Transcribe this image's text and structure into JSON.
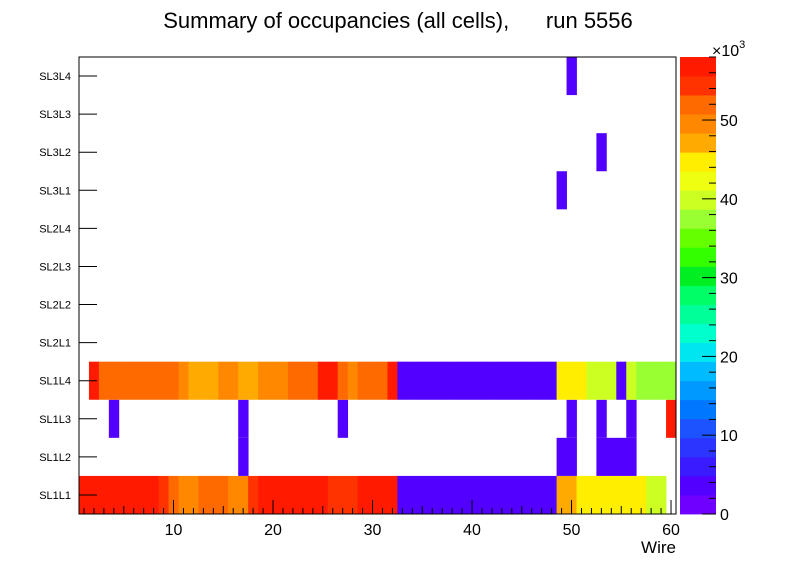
{
  "chart_data": {
    "type": "heatmap",
    "title": "Summary of occupancies (all cells),      run 5556",
    "xlabel": "Wire",
    "ylabel": "",
    "xlim": [
      0.5,
      60.5
    ],
    "x_ticks": [
      10,
      20,
      30,
      40,
      50,
      60
    ],
    "y_categories": [
      "SL1L1",
      "SL1L2",
      "SL1L3",
      "SL1L4",
      "SL2L1",
      "SL2L2",
      "SL2L3",
      "SL2L4",
      "SL3L1",
      "SL3L2",
      "SL3L3",
      "SL3L4"
    ],
    "colorbar": {
      "range": [
        0,
        58000
      ],
      "ticks": [
        0,
        10,
        20,
        30,
        40,
        50
      ],
      "exponent_label": "×10",
      "exponent_power": "3"
    },
    "rows": {
      "SL1L1": {
        "start_wire": 1,
        "values": [
          56000,
          56000,
          56000,
          56000,
          56000,
          56000,
          56000,
          56000,
          54000,
          52000,
          50000,
          50000,
          52000,
          52000,
          52000,
          50000,
          50000,
          54000,
          56000,
          56000,
          56000,
          56000,
          56000,
          56000,
          56000,
          54000,
          54000,
          54000,
          56000,
          56000,
          56000,
          56000,
          3000,
          3000,
          3000,
          3000,
          3000,
          3000,
          3000,
          3000,
          3000,
          3000,
          3000,
          3000,
          3000,
          3000,
          3000,
          3000,
          46000,
          46000,
          44000,
          44000,
          44000,
          44000,
          44000,
          44000,
          44000,
          40000,
          40000
        ]
      },
      "SL1L2": {
        "start_wire": 1,
        "values": [
          null,
          null,
          null,
          null,
          null,
          null,
          null,
          null,
          null,
          null,
          null,
          null,
          null,
          null,
          null,
          null,
          3000,
          null,
          null,
          null,
          null,
          null,
          null,
          null,
          null,
          null,
          null,
          null,
          null,
          null,
          null,
          null,
          null,
          null,
          null,
          null,
          null,
          null,
          null,
          null,
          null,
          null,
          null,
          null,
          null,
          null,
          null,
          null,
          3000,
          3000,
          null,
          null,
          3000,
          3000,
          3000,
          3000,
          null,
          null,
          null,
          null
        ]
      },
      "SL1L3": {
        "start_wire": 1,
        "values": [
          null,
          null,
          null,
          3000,
          null,
          null,
          null,
          null,
          null,
          null,
          null,
          null,
          null,
          null,
          null,
          null,
          3000,
          null,
          null,
          null,
          null,
          null,
          null,
          null,
          null,
          null,
          3000,
          null,
          null,
          null,
          null,
          null,
          null,
          null,
          null,
          null,
          null,
          null,
          null,
          null,
          null,
          null,
          null,
          null,
          null,
          null,
          null,
          null,
          null,
          3000,
          null,
          null,
          3000,
          null,
          null,
          3000,
          null,
          null,
          null,
          56000
        ]
      },
      "SL1L4": {
        "start_wire": 1,
        "values": [
          null,
          56000,
          52000,
          52000,
          52000,
          52000,
          52000,
          52000,
          52000,
          52000,
          50000,
          46000,
          46000,
          46000,
          50000,
          50000,
          46000,
          46000,
          50000,
          50000,
          50000,
          52000,
          52000,
          52000,
          56000,
          56000,
          52000,
          50000,
          52000,
          52000,
          52000,
          56000,
          3000,
          3000,
          3000,
          3000,
          3000,
          3000,
          3000,
          3000,
          3000,
          3000,
          3000,
          3000,
          3000,
          3000,
          3000,
          3000,
          44000,
          44000,
          44000,
          40000,
          40000,
          40000,
          3000,
          40000,
          38000,
          38000,
          38000,
          38000
        ]
      },
      "SL2L1": {
        "start_wire": 1,
        "values": []
      },
      "SL2L2": {
        "start_wire": 1,
        "values": []
      },
      "SL2L3": {
        "start_wire": 1,
        "values": []
      },
      "SL2L4": {
        "start_wire": 1,
        "values": []
      },
      "SL3L1": {
        "start_wire": 1,
        "values": [
          null,
          null,
          null,
          null,
          null,
          null,
          null,
          null,
          null,
          null,
          null,
          null,
          null,
          null,
          null,
          null,
          null,
          null,
          null,
          null,
          null,
          null,
          null,
          null,
          null,
          null,
          null,
          null,
          null,
          null,
          null,
          null,
          null,
          null,
          null,
          null,
          null,
          null,
          null,
          null,
          null,
          null,
          null,
          null,
          null,
          null,
          null,
          null,
          3000
        ]
      },
      "SL3L2": {
        "start_wire": 1,
        "values": [
          null,
          null,
          null,
          null,
          null,
          null,
          null,
          null,
          null,
          null,
          null,
          null,
          null,
          null,
          null,
          null,
          null,
          null,
          null,
          null,
          null,
          null,
          null,
          null,
          null,
          null,
          null,
          null,
          null,
          null,
          null,
          null,
          null,
          null,
          null,
          null,
          null,
          null,
          null,
          null,
          null,
          null,
          null,
          null,
          null,
          null,
          null,
          null,
          null,
          null,
          null,
          null,
          3000
        ]
      },
      "SL3L3": {
        "start_wire": 1,
        "values": []
      },
      "SL3L4": {
        "start_wire": 1,
        "values": [
          null,
          null,
          null,
          null,
          null,
          null,
          null,
          null,
          null,
          null,
          null,
          null,
          null,
          null,
          null,
          null,
          null,
          null,
          null,
          null,
          null,
          null,
          null,
          null,
          null,
          null,
          null,
          null,
          null,
          null,
          null,
          null,
          null,
          null,
          null,
          null,
          null,
          null,
          null,
          null,
          null,
          null,
          null,
          null,
          null,
          null,
          null,
          null,
          null,
          3000
        ]
      }
    },
    "palette": [
      "#6f00ff",
      "#5200ff",
      "#3a1bff",
      "#2b35ff",
      "#1d53ff",
      "#0077ff",
      "#0099ff",
      "#00bbff",
      "#00e6f0",
      "#00ffcc",
      "#00ff99",
      "#00ff66",
      "#00ee22",
      "#33ff00",
      "#66ff00",
      "#99ff33",
      "#ccff22",
      "#eeff11",
      "#ffee00",
      "#ffaa00",
      "#ff8800",
      "#ff6a00",
      "#ff3300",
      "#ff1a00"
    ]
  }
}
